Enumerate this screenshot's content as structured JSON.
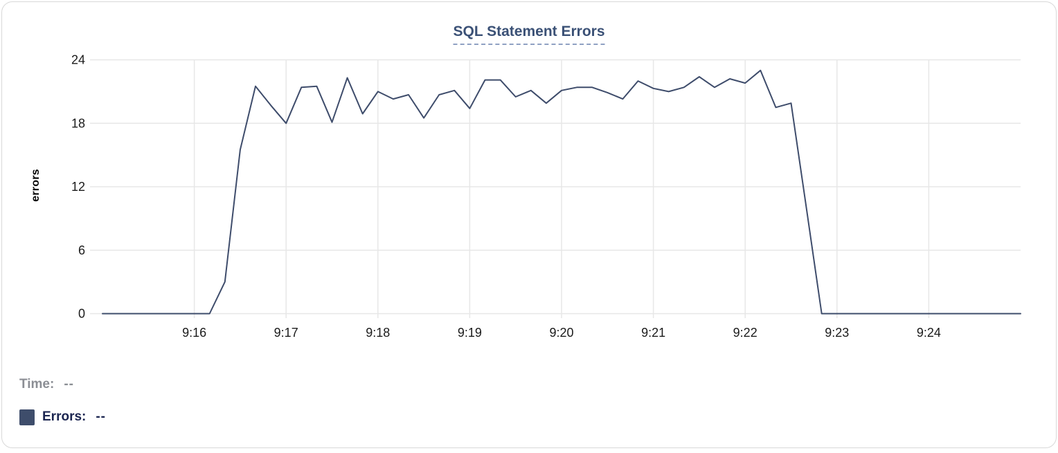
{
  "card": {
    "background": "#ffffff",
    "border_color": "#d8d8d8"
  },
  "chart_data": {
    "type": "line",
    "title": "SQL Statement Errors",
    "xlabel": "",
    "ylabel": "errors",
    "grid": true,
    "legend_position": "none",
    "x_range": [
      "9:15:00",
      "9:25:00"
    ],
    "x_tick_labels": [
      "9:16",
      "9:17",
      "9:18",
      "9:19",
      "9:20",
      "9:21",
      "9:22",
      "9:23",
      "9:24"
    ],
    "y_ticks": [
      0,
      6,
      12,
      18,
      24
    ],
    "ylim": [
      0,
      24
    ],
    "series": [
      {
        "name": "Errors",
        "color": "#3e4c6b",
        "times": [
          "9:15:00",
          "9:15:10",
          "9:15:20",
          "9:15:30",
          "9:15:40",
          "9:15:50",
          "9:16:00",
          "9:16:10",
          "9:16:20",
          "9:16:30",
          "9:16:40",
          "9:16:50",
          "9:17:00",
          "9:17:10",
          "9:17:20",
          "9:17:30",
          "9:17:40",
          "9:17:50",
          "9:18:00",
          "9:18:10",
          "9:18:20",
          "9:18:30",
          "9:18:40",
          "9:18:50",
          "9:19:00",
          "9:19:10",
          "9:19:20",
          "9:19:30",
          "9:19:40",
          "9:19:50",
          "9:20:00",
          "9:20:10",
          "9:20:20",
          "9:20:30",
          "9:20:40",
          "9:20:50",
          "9:21:00",
          "9:21:10",
          "9:21:20",
          "9:21:30",
          "9:21:40",
          "9:21:50",
          "9:22:00",
          "9:22:10",
          "9:22:20",
          "9:22:30",
          "9:22:40",
          "9:22:50",
          "9:23:00",
          "9:23:10",
          "9:23:20",
          "9:23:30",
          "9:23:40",
          "9:23:50",
          "9:24:00",
          "9:24:10",
          "9:24:20",
          "9:24:30",
          "9:24:40",
          "9:24:50",
          "9:25:00"
        ],
        "values": [
          0,
          0,
          0,
          0,
          0,
          0,
          0,
          0,
          3,
          15.5,
          21.5,
          19.7,
          18,
          21.4,
          21.5,
          18.1,
          22.3,
          18.9,
          21,
          20.3,
          20.7,
          18.5,
          20.7,
          21.1,
          19.4,
          22.1,
          22.1,
          20.5,
          21.1,
          19.9,
          21.1,
          21.4,
          21.4,
          20.9,
          20.3,
          22,
          21.3,
          21,
          21.4,
          22.4,
          21.4,
          22.2,
          21.8,
          23,
          19.5,
          19.9,
          10,
          0,
          0,
          0,
          0,
          0,
          0,
          0,
          0,
          0,
          0,
          0,
          0,
          0,
          0
        ]
      }
    ],
    "axis_text_color": "#1a1a1a",
    "grid_color": "#e7e7e7"
  },
  "tooltip_legend": {
    "time_label": "Time:",
    "time_value": "--",
    "errors_label": "Errors:",
    "errors_value": "--",
    "swatch_color": "#3e4d6b"
  }
}
